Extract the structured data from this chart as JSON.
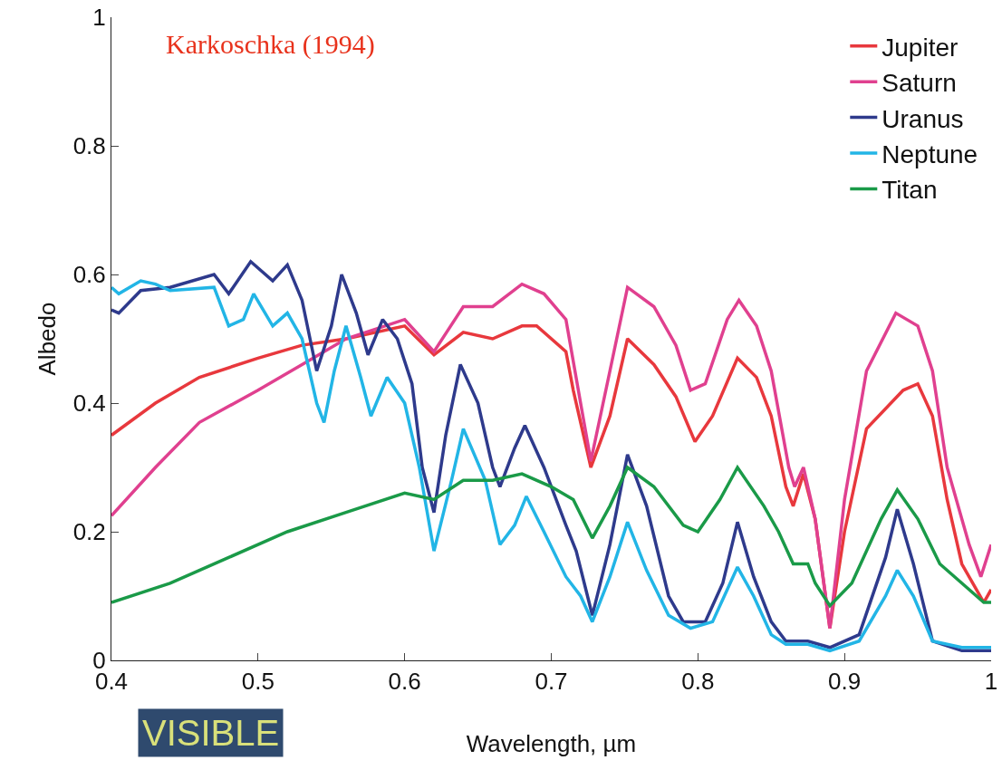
{
  "chart_data": {
    "type": "line",
    "xlabel": "Wavelength, µm",
    "ylabel": "Albedo",
    "annotations": [
      "Karkoschka (1994)",
      "VISIBLE"
    ],
    "xlim": [
      0.4,
      1
    ],
    "xticks": [
      0.4,
      0.5,
      0.6,
      0.7,
      0.8,
      0.9,
      1
    ],
    "ylim": [
      0,
      1
    ],
    "yticks": [
      0,
      0.2,
      0.4,
      0.6,
      0.8,
      1
    ],
    "grid": false,
    "legend": "top right",
    "marker": "none",
    "line_style": "solid",
    "series": [
      {
        "name": "Jupiter",
        "color": "#e8383d",
        "x": [
          0.4,
          0.43,
          0.46,
          0.5,
          0.53,
          0.56,
          0.6,
          0.62,
          0.64,
          0.66,
          0.68,
          0.69,
          0.71,
          0.715,
          0.727,
          0.74,
          0.752,
          0.77,
          0.785,
          0.798,
          0.81,
          0.827,
          0.84,
          0.85,
          0.86,
          0.865,
          0.872,
          0.88,
          0.89,
          0.9,
          0.915,
          0.94,
          0.95,
          0.96,
          0.97,
          0.98,
          0.995,
          1.0
        ],
        "values": [
          0.35,
          0.4,
          0.44,
          0.47,
          0.49,
          0.5,
          0.52,
          0.475,
          0.51,
          0.5,
          0.52,
          0.52,
          0.48,
          0.42,
          0.3,
          0.38,
          0.5,
          0.46,
          0.41,
          0.34,
          0.38,
          0.47,
          0.44,
          0.38,
          0.27,
          0.24,
          0.29,
          0.22,
          0.05,
          0.2,
          0.36,
          0.42,
          0.43,
          0.38,
          0.25,
          0.15,
          0.09,
          0.11
        ]
      },
      {
        "name": "Saturn",
        "color": "#e0408f",
        "x": [
          0.4,
          0.43,
          0.46,
          0.5,
          0.53,
          0.56,
          0.6,
          0.62,
          0.64,
          0.66,
          0.68,
          0.695,
          0.71,
          0.72,
          0.727,
          0.74,
          0.752,
          0.77,
          0.785,
          0.795,
          0.805,
          0.82,
          0.828,
          0.84,
          0.85,
          0.862,
          0.866,
          0.872,
          0.88,
          0.89,
          0.9,
          0.915,
          0.935,
          0.95,
          0.96,
          0.97,
          0.985,
          0.993,
          1.0
        ],
        "values": [
          0.225,
          0.3,
          0.37,
          0.42,
          0.46,
          0.5,
          0.53,
          0.48,
          0.55,
          0.55,
          0.585,
          0.57,
          0.53,
          0.4,
          0.31,
          0.45,
          0.58,
          0.55,
          0.49,
          0.42,
          0.43,
          0.53,
          0.56,
          0.52,
          0.45,
          0.3,
          0.27,
          0.3,
          0.22,
          0.05,
          0.25,
          0.45,
          0.54,
          0.52,
          0.45,
          0.3,
          0.18,
          0.13,
          0.18
        ]
      },
      {
        "name": "Uranus",
        "color": "#2e3a8c",
        "x": [
          0.4,
          0.405,
          0.42,
          0.44,
          0.47,
          0.48,
          0.495,
          0.51,
          0.52,
          0.53,
          0.54,
          0.55,
          0.557,
          0.567,
          0.575,
          0.585,
          0.595,
          0.605,
          0.612,
          0.62,
          0.628,
          0.638,
          0.65,
          0.66,
          0.665,
          0.675,
          0.682,
          0.695,
          0.71,
          0.717,
          0.728,
          0.74,
          0.752,
          0.765,
          0.78,
          0.79,
          0.805,
          0.817,
          0.827,
          0.838,
          0.85,
          0.86,
          0.875,
          0.89,
          0.91,
          0.928,
          0.936,
          0.947,
          0.96,
          0.98,
          1.0
        ],
        "values": [
          0.545,
          0.54,
          0.575,
          0.58,
          0.6,
          0.57,
          0.62,
          0.59,
          0.615,
          0.56,
          0.45,
          0.52,
          0.6,
          0.54,
          0.475,
          0.53,
          0.5,
          0.43,
          0.3,
          0.23,
          0.35,
          0.46,
          0.4,
          0.3,
          0.27,
          0.33,
          0.365,
          0.3,
          0.21,
          0.17,
          0.07,
          0.18,
          0.32,
          0.24,
          0.1,
          0.06,
          0.06,
          0.12,
          0.215,
          0.13,
          0.06,
          0.03,
          0.03,
          0.02,
          0.04,
          0.16,
          0.235,
          0.15,
          0.03,
          0.015,
          0.015
        ]
      },
      {
        "name": "Neptune",
        "color": "#22b5e6",
        "x": [
          0.4,
          0.405,
          0.42,
          0.43,
          0.44,
          0.47,
          0.48,
          0.49,
          0.497,
          0.51,
          0.52,
          0.53,
          0.54,
          0.545,
          0.552,
          0.56,
          0.57,
          0.577,
          0.588,
          0.6,
          0.61,
          0.62,
          0.632,
          0.64,
          0.655,
          0.665,
          0.675,
          0.683,
          0.695,
          0.71,
          0.72,
          0.728,
          0.74,
          0.752,
          0.765,
          0.78,
          0.795,
          0.81,
          0.82,
          0.827,
          0.838,
          0.85,
          0.86,
          0.875,
          0.89,
          0.91,
          0.928,
          0.936,
          0.947,
          0.96,
          0.98,
          1.0
        ],
        "values": [
          0.58,
          0.57,
          0.59,
          0.585,
          0.575,
          0.58,
          0.52,
          0.53,
          0.57,
          0.52,
          0.54,
          0.5,
          0.4,
          0.37,
          0.45,
          0.52,
          0.44,
          0.38,
          0.44,
          0.4,
          0.3,
          0.17,
          0.28,
          0.36,
          0.28,
          0.18,
          0.21,
          0.255,
          0.2,
          0.13,
          0.1,
          0.06,
          0.13,
          0.215,
          0.14,
          0.07,
          0.05,
          0.06,
          0.11,
          0.145,
          0.1,
          0.04,
          0.025,
          0.025,
          0.015,
          0.03,
          0.1,
          0.14,
          0.1,
          0.03,
          0.02,
          0.02
        ]
      },
      {
        "name": "Titan",
        "color": "#1a9a48",
        "x": [
          0.4,
          0.44,
          0.48,
          0.52,
          0.56,
          0.6,
          0.62,
          0.64,
          0.66,
          0.68,
          0.7,
          0.715,
          0.728,
          0.74,
          0.752,
          0.77,
          0.79,
          0.8,
          0.815,
          0.827,
          0.845,
          0.855,
          0.865,
          0.875,
          0.88,
          0.89,
          0.905,
          0.925,
          0.936,
          0.95,
          0.965,
          0.98,
          0.995,
          1.0
        ],
        "values": [
          0.09,
          0.12,
          0.16,
          0.2,
          0.23,
          0.26,
          0.25,
          0.28,
          0.28,
          0.29,
          0.27,
          0.25,
          0.19,
          0.24,
          0.3,
          0.27,
          0.21,
          0.2,
          0.25,
          0.3,
          0.24,
          0.2,
          0.15,
          0.15,
          0.12,
          0.085,
          0.12,
          0.22,
          0.265,
          0.22,
          0.15,
          0.12,
          0.09,
          0.09
        ]
      }
    ]
  }
}
